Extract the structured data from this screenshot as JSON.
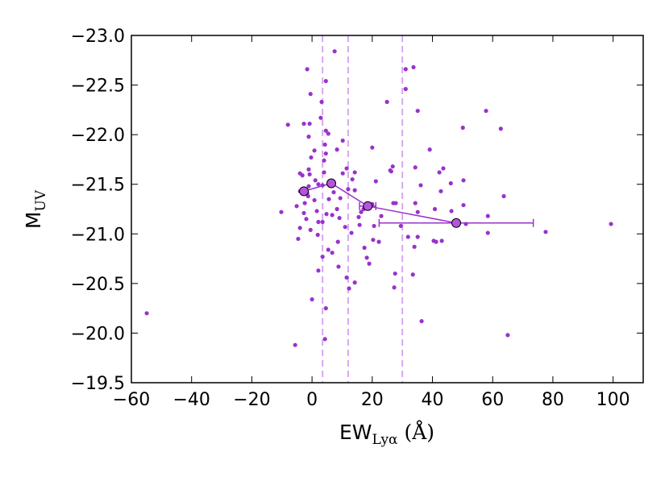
{
  "chart_data": {
    "type": "scatter",
    "xlabel": "EW",
    "xlabel_sub": "Lyα",
    "xlabel_suffix": " (Å)",
    "ylabel": "M",
    "ylabel_sub": "UV",
    "color": "#9932cc",
    "line_color": "#d8a8f0",
    "marker_fill": "#b455dc",
    "xlim": [
      -60,
      110
    ],
    "xticks": [
      {
        "value": -60,
        "label": "−60"
      },
      {
        "value": -40,
        "label": "−40"
      },
      {
        "value": -20,
        "label": "−20"
      },
      0,
      20,
      40,
      60,
      80,
      100
    ],
    "ylim": [
      -19.5,
      -23
    ],
    "yticks": [
      {
        "value": -23,
        "label": "−23.0"
      },
      {
        "value": -22.5,
        "label": "−22.5"
      },
      {
        "value": -22,
        "label": "−22.0"
      },
      {
        "value": -21.5,
        "label": "−21.5"
      },
      {
        "value": -21,
        "label": "−21.0"
      },
      {
        "value": -20.5,
        "label": "−20.5"
      },
      {
        "value": -20,
        "label": "−20.0"
      },
      {
        "value": -19.5,
        "label": "−19.5"
      }
    ],
    "vlines": [
      3.5,
      12,
      30
    ],
    "x": [
      -54.9,
      65,
      99.3,
      77.6,
      -10.2,
      -8,
      -5.6,
      -4.6,
      -1.6,
      -0.5,
      -0.8,
      -2.7,
      0.8,
      3.2,
      2.9,
      5.4,
      7.5,
      4,
      4.3,
      4.6,
      4,
      4.6,
      4.3,
      3.5,
      2.1,
      0,
      6.7,
      11,
      12,
      11.5,
      11.5,
      12.3,
      14.2,
      15.8,
      18.2,
      17.4,
      20,
      23,
      22.2,
      24.9,
      26,
      26.3,
      26.8,
      27,
      27.8,
      27.6,
      27.3,
      29.5,
      31.1,
      31.1,
      33.5,
      33.7,
      35.1,
      36.1,
      36.4,
      35.1,
      35.1,
      39.1,
      42.3,
      43.6,
      42.8,
      43.1,
      40.4,
      41.2,
      40.8,
      46.3,
      46.1,
      50.3,
      50.3,
      51.1,
      50.1,
      57.8,
      58.4,
      58.4,
      62.7,
      63.7,
      34.3,
      34.3,
      34,
      31.9,
      20.3,
      20.6,
      21.2,
      20,
      19,
      16.3,
      15.5,
      14.2,
      14.2,
      13.4,
      10.2,
      9.4,
      9.1,
      8.3,
      7.2,
      6.7,
      5.6,
      4.8,
      3.5,
      3.5,
      2.1,
      1.6,
      1.9,
      2.1,
      1.1,
      -0.8,
      -1.1,
      -1.3,
      -2.4,
      -2.7,
      -4,
      -4,
      -5.1,
      -4,
      -3.2,
      -1.9,
      -1.6,
      -1.1,
      -0.5,
      0.8,
      -1.1,
      -0.3,
      4.6,
      5.4,
      8.8,
      8.6,
      10.2,
      8.3,
      4.6,
      13.1,
      17.1
    ],
    "y": [
      -20.2,
      -19.98,
      -21.1,
      -21.02,
      -21.22,
      -22.1,
      -19.88,
      -20.95,
      -22.66,
      -22.41,
      -22.11,
      -22.11,
      -21.84,
      -22.33,
      -22.17,
      -22.01,
      -22.84,
      -21.62,
      -21.9,
      -21.81,
      -21.74,
      -20.25,
      -19.94,
      -20.77,
      -20.63,
      -20.34,
      -20.81,
      -21.07,
      -21.45,
      -21.66,
      -20.56,
      -20.45,
      -20.51,
      -21.09,
      -20.76,
      -20.86,
      -21.87,
      -21.18,
      -20.92,
      -22.33,
      -21.64,
      -21.63,
      -21.68,
      -21.31,
      -21.31,
      -20.6,
      -20.46,
      -21.08,
      -22.66,
      -22.46,
      -20.59,
      -22.68,
      -22.24,
      -21.49,
      -20.12,
      -20.97,
      -21.22,
      -21.85,
      -21.62,
      -21.66,
      -21.43,
      -20.93,
      -20.93,
      -20.92,
      -21.25,
      -21.23,
      -21.51,
      -21.54,
      -21.29,
      -21.1,
      -22.07,
      -22.24,
      -21.18,
      -21.01,
      -22.06,
      -21.38,
      -21.67,
      -21.31,
      -20.87,
      -20.97,
      -20.94,
      -21.08,
      -21.53,
      -21.3,
      -20.7,
      -21.22,
      -21.17,
      -21.44,
      -21.62,
      -21.55,
      -21.61,
      -21.36,
      -21.16,
      -21.25,
      -21.42,
      -21.19,
      -21.35,
      -21.2,
      -21.49,
      -21.12,
      -21.12,
      -21.23,
      -20.99,
      -21.5,
      -21.54,
      -21.6,
      -21.48,
      -21.38,
      -21.31,
      -21.21,
      -21.43,
      -21.61,
      -21.28,
      -21.06,
      -21.59,
      -21.15,
      -21.41,
      -21.65,
      -21.04,
      -21.34,
      -21.98,
      -21.77,
      -22.04,
      -20.84,
      -20.67,
      -20.92,
      -21.94,
      -21.85,
      -22.54,
      -21.01,
      -21.25
    ],
    "binned": {
      "x": [
        -2.7,
        6.4,
        18.5,
        47.9
      ],
      "y": [
        -21.43,
        -21.51,
        -21.28,
        -21.11
      ],
      "xerr": [
        0.5,
        0.8,
        2.7,
        25.6
      ]
    }
  }
}
